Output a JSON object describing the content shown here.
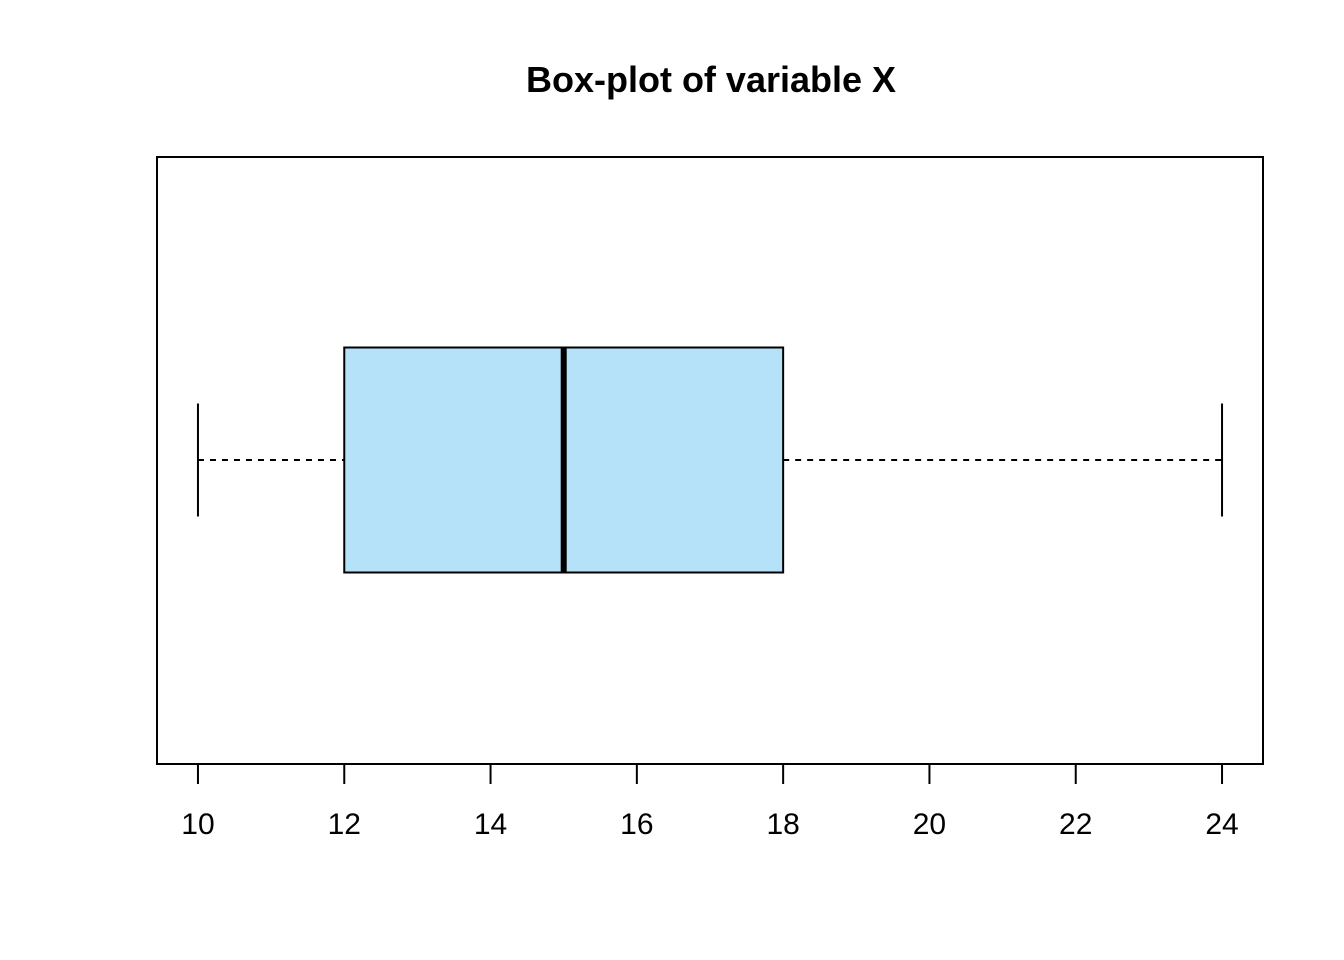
{
  "chart_data": {
    "type": "boxplot",
    "title": "Box-plot of variable X",
    "orientation": "horizontal",
    "xlabel": "",
    "ylabel": "",
    "xlim": [
      9.44,
      24.56
    ],
    "ticks": [
      "10",
      "12",
      "14",
      "16",
      "18",
      "20",
      "22",
      "24"
    ],
    "tick_values": [
      10,
      12,
      14,
      16,
      18,
      20,
      22,
      24
    ],
    "boxes": [
      {
        "min": 10,
        "q1": 12,
        "median": 15,
        "q3": 18,
        "max": 24
      }
    ],
    "grid": false,
    "colors": {
      "box_fill": "#B5E1F9",
      "stroke": "#000000",
      "background": "#FFFFFF"
    }
  }
}
